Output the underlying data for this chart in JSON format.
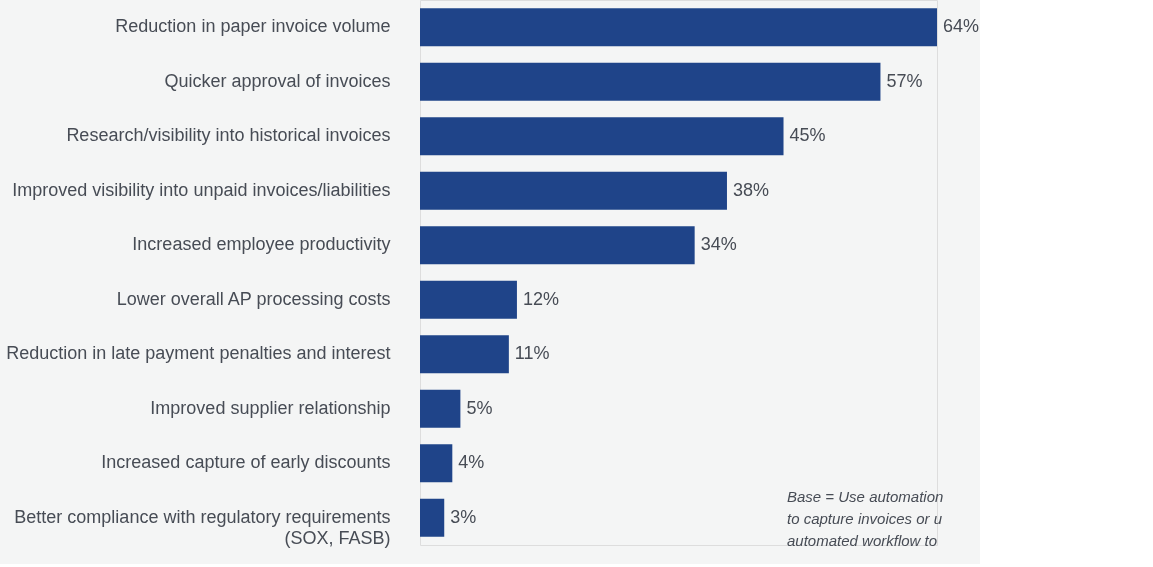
{
  "chart_data": {
    "type": "bar",
    "orientation": "horizontal",
    "categories": [
      "Reduction in paper invoice volume",
      "Quicker approval of invoices",
      "Research/visibility into historical invoices",
      "Improved visibility into unpaid invoices/liabilities",
      "Increased employee productivity",
      "Lower overall AP processing costs",
      "Reduction in late payment penalties and interest",
      "Improved supplier relationship",
      "Increased capture of early discounts",
      "Better compliance with regulatory requirements\n(SOX, FASB)"
    ],
    "values": [
      64,
      57,
      45,
      38,
      34,
      12,
      11,
      5,
      4,
      3
    ],
    "color": "#1f4489",
    "value_labels": [
      "64%",
      "57%",
      "45%",
      "38%",
      "34%",
      "12%",
      "11%",
      "5%",
      "4%",
      "3%"
    ],
    "annotations": [
      "Base = Use automation\nto capture invoices or u\nautomated workflow to"
    ],
    "grid": false
  }
}
